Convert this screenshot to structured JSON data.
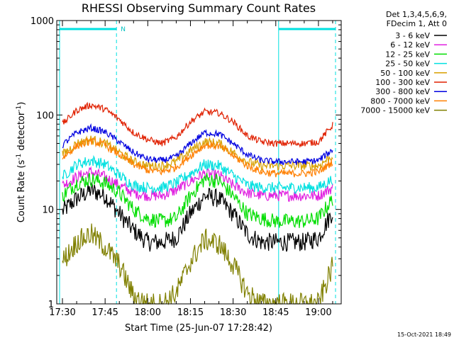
{
  "chart_data": {
    "type": "line",
    "title": "RHESSI Observing Summary Count Rates",
    "xlabel": "Start Time (25-Jun-07 17:28:42)",
    "ylabel_prefix": "Count Rate (s",
    "ylabel_sup1": "-1",
    "ylabel_mid": " detector",
    "ylabel_sup2": "-1",
    "ylabel_suffix": ")",
    "yscale": "log",
    "xlim": [
      "17:28",
      "19:08"
    ],
    "ylim": [
      1,
      1000
    ],
    "x_ticks": [
      "17:30",
      "17:45",
      "18:00",
      "18:15",
      "18:30",
      "18:45",
      "19:00"
    ],
    "y_ticks": [
      "1",
      "10",
      "100",
      "1000"
    ],
    "legend_position": "top-right",
    "legend_header": [
      "Det 1,3,4,5,6,9,",
      "FDecim 1, Att 0"
    ],
    "flag_label": "N",
    "flags": [
      {
        "start": "17:29",
        "end": "17:49",
        "label_shown": true
      },
      {
        "start": "18:46",
        "end": "19:06",
        "label_shown": false
      }
    ],
    "x": [
      "17:30",
      "17:35",
      "17:40",
      "17:45",
      "17:50",
      "17:55",
      "18:00",
      "18:05",
      "18:10",
      "18:15",
      "18:20",
      "18:25",
      "18:30",
      "18:35",
      "18:40",
      "18:45",
      "18:50",
      "18:55",
      "19:00",
      "19:05"
    ],
    "series": [
      {
        "name": "3 - 6 keV",
        "color": "#000000",
        "values": [
          9.5,
          13,
          16,
          14,
          9,
          6,
          4.5,
          4.5,
          5,
          9,
          14,
          13,
          9,
          5.5,
          4.5,
          4.5,
          4.5,
          4.5,
          5,
          9.5
        ]
      },
      {
        "name": "6 - 12 keV",
        "color": "#e020e0",
        "values": [
          18,
          22,
          25,
          22,
          18,
          15,
          14,
          14,
          16,
          20,
          24,
          23,
          18,
          15,
          14,
          14,
          14,
          14,
          14,
          17
        ]
      },
      {
        "name": "12 - 25 keV",
        "color": "#00dd00",
        "values": [
          14,
          19,
          21,
          19,
          15,
          10,
          8,
          7.5,
          8,
          14,
          21,
          20,
          14,
          9,
          8,
          7.5,
          7.5,
          7.5,
          8,
          13
        ]
      },
      {
        "name": "25 - 50 keV",
        "color": "#00e0e0",
        "values": [
          22,
          30,
          33,
          30,
          23,
          18,
          17,
          17,
          19,
          24,
          30,
          29,
          23,
          18,
          17,
          17,
          17,
          17,
          17,
          21
        ]
      },
      {
        "name": "50 - 100 keV",
        "color": "#d8a000",
        "values": [
          38,
          50,
          55,
          50,
          40,
          32,
          29,
          29,
          32,
          42,
          52,
          50,
          40,
          32,
          29,
          29,
          29,
          29,
          29,
          37
        ]
      },
      {
        "name": "100 - 300 keV",
        "color": "#e02000",
        "values": [
          80,
          112,
          128,
          115,
          90,
          65,
          55,
          50,
          58,
          85,
          108,
          105,
          85,
          60,
          52,
          50,
          50,
          50,
          52,
          78
        ]
      },
      {
        "name": "300 - 800 keV",
        "color": "#0000e0",
        "values": [
          48,
          65,
          73,
          66,
          52,
          40,
          34,
          33,
          36,
          50,
          65,
          63,
          50,
          38,
          33,
          32,
          32,
          32,
          33,
          43
        ]
      },
      {
        "name": "800 - 7000 keV",
        "color": "#ff7f00",
        "values": [
          35,
          47,
          53,
          48,
          38,
          30,
          26,
          25,
          28,
          37,
          48,
          47,
          37,
          29,
          25,
          24,
          24,
          24,
          25,
          32
        ]
      },
      {
        "name": "7000 - 15000 keV",
        "color": "#808000",
        "values": [
          2.8,
          4.5,
          5.5,
          4.0,
          2.6,
          1.2,
          1.0,
          1.0,
          1.3,
          2.8,
          4.8,
          4.3,
          2.6,
          1.3,
          1.0,
          1.0,
          1.0,
          1.0,
          1.0,
          2.5
        ]
      }
    ]
  },
  "footer": {
    "timestamp": "15-Oct-2021 18:49"
  }
}
